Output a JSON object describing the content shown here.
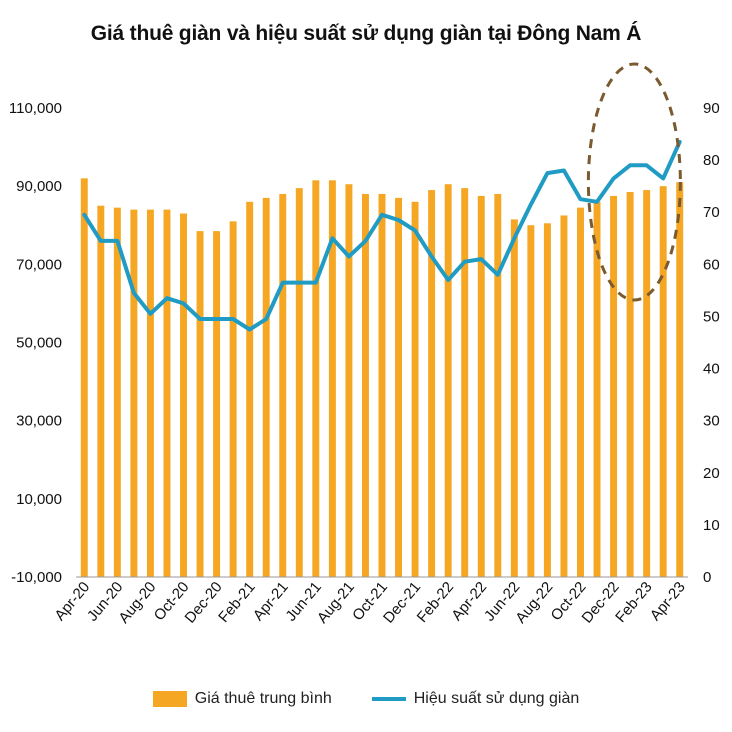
{
  "chart_data": {
    "type": "bar",
    "title": "Giá thuê giàn và hiệu suất sử dụng giàn tại Đông Nam Á",
    "colors": {
      "bars": "#F5A623",
      "line": "#1F9BC4",
      "annotation": "#7A5A2E"
    },
    "x": [
      "Apr-20",
      "May-20",
      "Jun-20",
      "Jul-20",
      "Aug-20",
      "Sep-20",
      "Oct-20",
      "Nov-20",
      "Dec-20",
      "Jan-21",
      "Feb-21",
      "Mar-21",
      "Apr-21",
      "May-21",
      "Jun-21",
      "Jul-21",
      "Aug-21",
      "Sep-21",
      "Oct-21",
      "Nov-21",
      "Dec-21",
      "Jan-22",
      "Feb-22",
      "Mar-22",
      "Apr-22",
      "May-22",
      "Jun-22",
      "Jul-22",
      "Aug-22",
      "Sep-22",
      "Oct-22",
      "Nov-22",
      "Dec-22",
      "Jan-23",
      "Feb-23",
      "Mar-23",
      "Apr-23"
    ],
    "x_tick_labels": [
      "Apr-20",
      "Jun-20",
      "Aug-20",
      "Oct-20",
      "Dec-20",
      "Feb-21",
      "Apr-21",
      "Jun-21",
      "Aug-21",
      "Oct-21",
      "Dec-21",
      "Feb-22",
      "Apr-22",
      "Jun-22",
      "Aug-22",
      "Oct-22",
      "Dec-22",
      "Feb-23",
      "Apr-23"
    ],
    "y_left": {
      "ticks": [
        "110,000",
        "90,000",
        "70,000",
        "50,000",
        "30,000",
        "10,000",
        "-10,000"
      ],
      "tick_values": [
        110000,
        90000,
        70000,
        50000,
        30000,
        10000,
        -10000
      ],
      "ylim": [
        -10000,
        110000
      ]
    },
    "y_right": {
      "ticks": [
        "90",
        "80",
        "70",
        "60",
        "50",
        "40",
        "30",
        "20",
        "10",
        "0"
      ],
      "tick_values": [
        90,
        80,
        70,
        60,
        50,
        40,
        30,
        20,
        10,
        0
      ],
      "ylim": [
        0,
        90
      ]
    },
    "series": [
      {
        "name": "Giá thuê trung bình",
        "type": "bar",
        "axis": "left",
        "values": [
          92000,
          85000,
          84500,
          84000,
          84000,
          84000,
          83000,
          78500,
          78500,
          81000,
          86000,
          87000,
          88000,
          89500,
          91500,
          91500,
          90500,
          88000,
          88000,
          87000,
          86000,
          89000,
          90500,
          89500,
          87500,
          88000,
          81500,
          80000,
          80500,
          82500,
          84500,
          86000,
          87500,
          88500,
          89000,
          90000,
          91000
        ]
      },
      {
        "name": "Hiệu suất sử dụng giàn",
        "type": "line",
        "axis": "right",
        "values": [
          69.5,
          64.5,
          64.5,
          54.5,
          50.5,
          53.5,
          52.5,
          49.5,
          49.5,
          49.5,
          47.5,
          49.5,
          56.5,
          56.5,
          56.5,
          65,
          61.5,
          64.5,
          69.5,
          68.5,
          66.5,
          61.5,
          57,
          60.5,
          61,
          58,
          65,
          71.5,
          77.5,
          78,
          72.5,
          72,
          76.5,
          79,
          79,
          76.5,
          83.5
        ]
      }
    ],
    "legend": {
      "position": "bottom"
    }
  }
}
